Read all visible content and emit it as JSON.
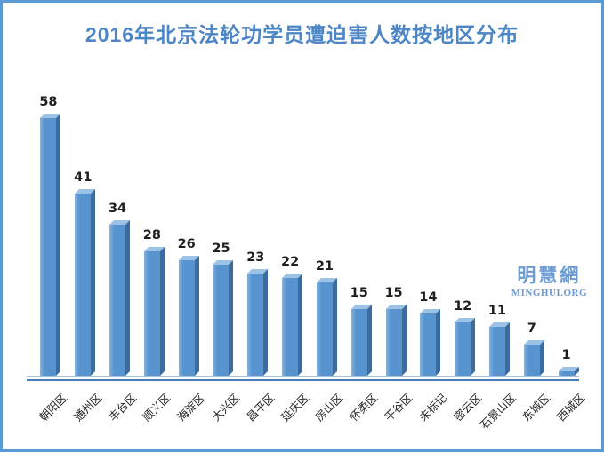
{
  "chart_data": {
    "type": "bar",
    "title": "2016年北京法轮功学员遭迫害人数按地区分布",
    "categories": [
      "朝阳区",
      "通州区",
      "丰台区",
      "顺义区",
      "海淀区",
      "大兴区",
      "昌平区",
      "延庆区",
      "房山区",
      "怀柔区",
      "平谷区",
      "未标记",
      "密云区",
      "石景山区",
      "东城区",
      "西城区"
    ],
    "values": [
      58,
      41,
      34,
      28,
      26,
      25,
      23,
      22,
      21,
      15,
      15,
      14,
      12,
      11,
      7,
      1
    ],
    "xlabel": "",
    "ylabel": "",
    "ylim": [
      0,
      60
    ],
    "grid": false,
    "legend": "none",
    "data_labels": true,
    "bar_style": "3d",
    "category_label_rotation_deg": -45
  },
  "watermark": {
    "cn": "明慧網",
    "en": "MINGHUI.ORG"
  },
  "colors": {
    "title": "#4C86C7",
    "frame_border": "#5B9BD5",
    "bar_face": "#5794CF",
    "bar_side": "#3C6C9E",
    "bar_top": "#9CC2E5",
    "axis_light": "#A6C1E0",
    "axis_dark": "#4A7CB8",
    "value_label": "#1F1F1F",
    "category_label": "#262626",
    "watermark": "#6B9BD2"
  }
}
